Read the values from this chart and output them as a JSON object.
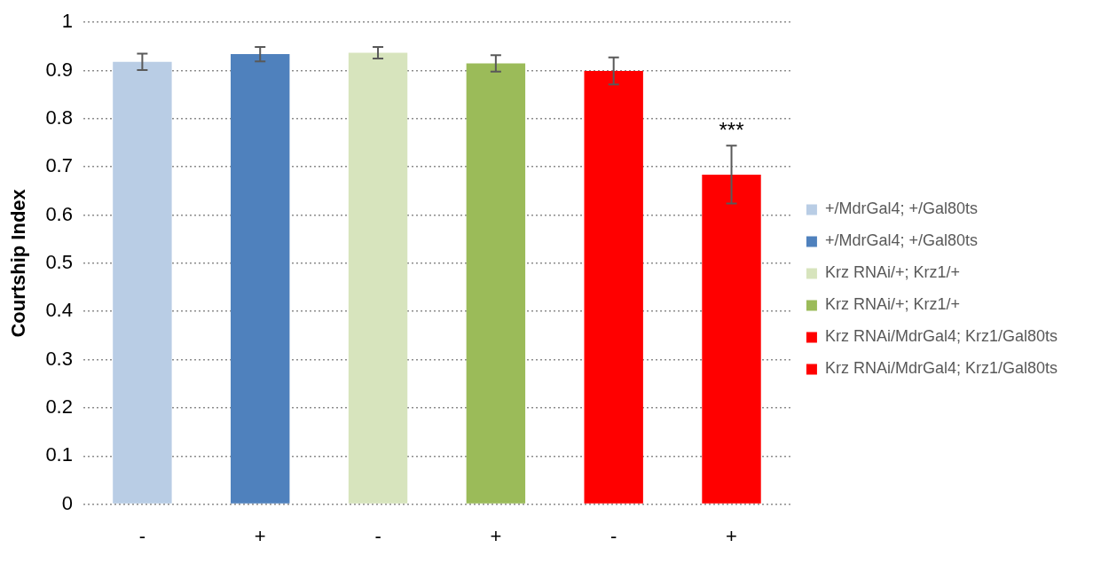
{
  "chart_data": {
    "type": "bar",
    "ylabel": "Courtship Index",
    "categories": [
      "-",
      "+",
      "-",
      "+",
      "-",
      "+"
    ],
    "series": [
      {
        "name": "+/MdrGal4; +/Gal80ts",
        "color": "#b9cde5",
        "values": [
          0.918,
          null,
          null,
          null,
          null,
          null
        ],
        "errors": [
          0.017,
          null,
          null,
          null,
          null,
          null
        ]
      },
      {
        "name": "+/MdrGal4; +/Gal80ts",
        "color": "#4f81bd",
        "values": [
          null,
          0.934,
          null,
          null,
          null,
          null
        ],
        "errors": [
          null,
          0.015,
          null,
          null,
          null,
          null
        ]
      },
      {
        "name": "Krz RNAi/+; Krz1/+",
        "color": "#d7e4bd",
        "values": [
          null,
          null,
          0.937,
          null,
          null,
          null
        ],
        "errors": [
          null,
          null,
          0.012,
          null,
          null,
          null
        ]
      },
      {
        "name": "Krz RNAi/+; Krz1/+",
        "color": "#9bbb59",
        "values": [
          null,
          null,
          null,
          0.915,
          null,
          null
        ],
        "errors": [
          null,
          null,
          null,
          0.017,
          null,
          null
        ]
      },
      {
        "name": "Krz RNAi/MdrGal4; Krz1/Gal80ts",
        "color": "#ff0000",
        "values": [
          null,
          null,
          null,
          null,
          0.899,
          null
        ],
        "errors": [
          null,
          null,
          null,
          null,
          0.028,
          null
        ]
      },
      {
        "name": "Krz RNAi/MdrGal4; Krz1/Gal80ts",
        "color": "#ff0000",
        "values": [
          null,
          null,
          null,
          null,
          null,
          0.684
        ],
        "errors": [
          null,
          null,
          null,
          null,
          null,
          0.06
        ]
      }
    ],
    "ylim": [
      0,
      1
    ],
    "yticks": [
      0,
      0.1,
      0.2,
      0.3,
      0.4,
      0.5,
      0.6,
      0.7,
      0.8,
      0.9,
      1
    ],
    "annotations": [
      "***"
    ],
    "grid": "y",
    "legend": "right"
  }
}
